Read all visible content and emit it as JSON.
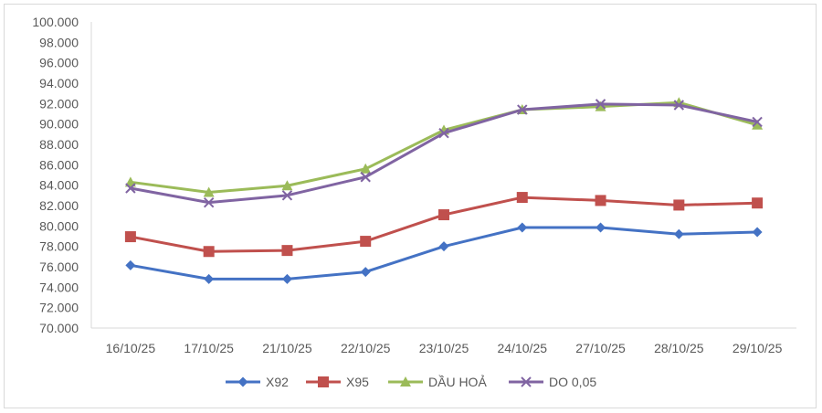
{
  "chart_data": {
    "type": "line",
    "title": "",
    "xlabel": "",
    "ylabel": "",
    "ylim": [
      70000,
      100000
    ],
    "y_ticks": [
      "70.000",
      "72.000",
      "74.000",
      "76.000",
      "78.000",
      "80.000",
      "82.000",
      "84.000",
      "86.000",
      "88.000",
      "90.000",
      "92.000",
      "94.000",
      "96.000",
      "98.000",
      "100.000"
    ],
    "categories": [
      "16/10/25",
      "17/10/25",
      "21/10/25",
      "22/10/25",
      "23/10/25",
      "24/10/25",
      "27/10/25",
      "28/10/25",
      "29/10/25"
    ],
    "legend_position": "bottom",
    "grid": false,
    "series": [
      {
        "name": "X92",
        "color": "#4472C4",
        "marker": "diamond",
        "values": [
          76150,
          74800,
          74800,
          75500,
          78000,
          79850,
          79850,
          79200,
          79400
        ]
      },
      {
        "name": "X95",
        "color": "#C0504D",
        "marker": "square",
        "values": [
          78950,
          77500,
          77600,
          78500,
          81100,
          82800,
          82500,
          82050,
          82250
        ]
      },
      {
        "name": "DẦU HOẢ",
        "color": "#9BBB59",
        "marker": "triangle",
        "values": [
          84300,
          83300,
          83950,
          85600,
          89400,
          91400,
          91700,
          92100,
          89900
        ]
      },
      {
        "name": "DO 0,05",
        "color": "#8064A2",
        "marker": "x",
        "values": [
          83700,
          82300,
          83000,
          84800,
          89100,
          91400,
          91950,
          91850,
          90200
        ]
      }
    ]
  }
}
